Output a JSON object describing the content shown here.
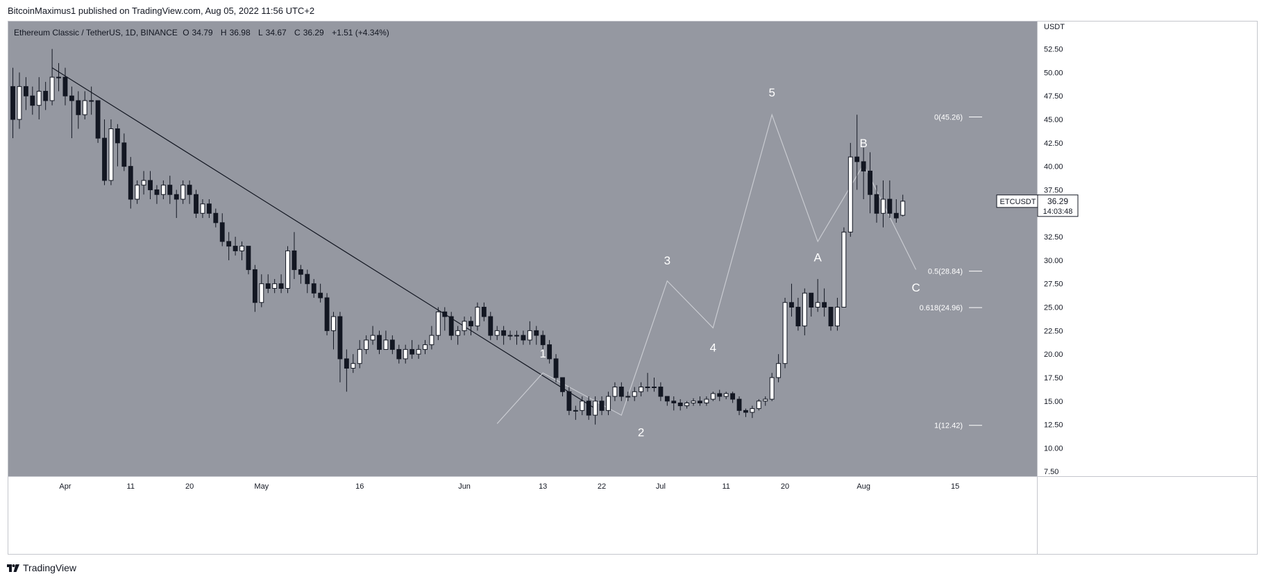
{
  "header": {
    "publisher_text": "BitcoinMaximus1 published on TradingView.com, Aug 05, 2022 11:56 UTC+2"
  },
  "legend": {
    "symbol_text": "Ethereum Classic / TetherUS, 1D, BINANCE",
    "o_label": "O",
    "o_value": "34.79",
    "h_label": "H",
    "h_value": "36.98",
    "l_label": "L",
    "l_value": "34.67",
    "c_label": "C",
    "c_value": "36.29",
    "change": "+1.51 (+4.34%)"
  },
  "price_tag": {
    "symbol": "ETCUSDT",
    "price": "36.29",
    "countdown": "14:03:48"
  },
  "footer": {
    "brand": "TradingView"
  },
  "colors": {
    "plot_bg": "#9598a1",
    "bull": "#ffffff",
    "bear": "#131722",
    "axis_bg": "#ffffff",
    "wave_line": "#c9cbd1",
    "trendline": "#131722"
  },
  "icons": {
    "logo": "tradingview-logo-icon"
  },
  "chart_data": {
    "type": "candlestick",
    "title": "Ethereum Classic / TetherUS, 1D, BINANCE",
    "currency_label": "USDT",
    "ylim": [
      7.0,
      55.5
    ],
    "y_ticks": [
      "7.50",
      "10.00",
      "12.50",
      "15.00",
      "17.50",
      "20.00",
      "22.50",
      "25.00",
      "27.50",
      "30.00",
      "32.50",
      "35.00",
      "37.50",
      "40.00",
      "42.50",
      "45.00",
      "47.50",
      "50.00",
      "52.50"
    ],
    "x_ticks": [
      {
        "label": "Apr",
        "index": 8
      },
      {
        "label": "11",
        "index": 18
      },
      {
        "label": "20",
        "index": 27
      },
      {
        "label": "May",
        "index": 38
      },
      {
        "label": "16",
        "index": 53
      },
      {
        "label": "Jun",
        "index": 69
      },
      {
        "label": "13",
        "index": 81
      },
      {
        "label": "22",
        "index": 90
      },
      {
        "label": "Jul",
        "index": 99
      },
      {
        "label": "11",
        "index": 109
      },
      {
        "label": "20",
        "index": 118
      },
      {
        "label": "Aug",
        "index": 130
      },
      {
        "label": "15",
        "index": 144
      }
    ],
    "x_range": [
      -0.8,
      156.5
    ],
    "candles": [
      [
        48.5,
        45.0,
        50.5,
        43.0
      ],
      [
        45.0,
        48.5,
        50.0,
        44.0
      ],
      [
        48.5,
        47.5,
        49.5,
        46.0
      ],
      [
        47.5,
        46.5,
        48.5,
        45.5
      ],
      [
        46.5,
        48.0,
        49.5,
        45.0
      ],
      [
        48.0,
        47.0,
        49.0,
        46.0
      ],
      [
        47.0,
        49.5,
        52.5,
        46.5
      ],
      [
        49.5,
        49.5,
        51.0,
        48.0
      ],
      [
        49.5,
        47.5,
        50.5,
        46.5
      ],
      [
        47.5,
        47.0,
        48.5,
        43.0
      ],
      [
        47.0,
        45.5,
        48.0,
        44.0
      ],
      [
        45.5,
        47.0,
        48.0,
        45.0
      ],
      [
        47.0,
        47.0,
        48.5,
        45.5
      ],
      [
        47.0,
        43.0,
        47.0,
        42.5
      ],
      [
        43.0,
        38.5,
        45.0,
        38.0
      ],
      [
        38.5,
        44.0,
        45.0,
        38.0
      ],
      [
        44.0,
        42.5,
        44.5,
        40.0
      ],
      [
        42.5,
        40.0,
        43.5,
        39.5
      ],
      [
        40.0,
        36.5,
        41.0,
        35.5
      ],
      [
        36.5,
        38.0,
        38.5,
        36.0
      ],
      [
        38.0,
        38.5,
        39.5,
        37.0
      ],
      [
        38.5,
        37.5,
        39.5,
        36.5
      ],
      [
        37.5,
        37.0,
        38.0,
        36.0
      ],
      [
        37.0,
        38.0,
        38.5,
        36.5
      ],
      [
        38.0,
        37.0,
        39.0,
        36.0
      ],
      [
        37.0,
        36.5,
        37.5,
        34.5
      ],
      [
        36.5,
        38.0,
        38.5,
        36.0
      ],
      [
        38.0,
        37.0,
        38.5,
        36.0
      ],
      [
        37.0,
        35.0,
        37.5,
        34.5
      ],
      [
        35.0,
        36.0,
        36.5,
        34.5
      ],
      [
        36.0,
        35.0,
        36.5,
        34.5
      ],
      [
        35.0,
        34.0,
        35.5,
        33.5
      ],
      [
        34.0,
        32.0,
        35.0,
        31.5
      ],
      [
        32.0,
        31.5,
        33.0,
        30.0
      ],
      [
        31.5,
        31.0,
        32.5,
        30.5
      ],
      [
        31.0,
        31.5,
        32.0,
        30.0
      ],
      [
        31.5,
        29.0,
        31.5,
        28.5
      ],
      [
        29.0,
        25.5,
        29.5,
        24.5
      ],
      [
        25.5,
        27.5,
        28.5,
        25.0
      ],
      [
        27.5,
        27.0,
        28.5,
        26.5
      ],
      [
        27.0,
        27.5,
        28.0,
        26.5
      ],
      [
        27.5,
        27.0,
        28.5,
        26.5
      ],
      [
        27.0,
        31.0,
        31.5,
        26.5
      ],
      [
        31.0,
        29.0,
        33.0,
        28.0
      ],
      [
        29.0,
        28.5,
        29.5,
        27.5
      ],
      [
        28.5,
        27.5,
        29.0,
        26.5
      ],
      [
        27.5,
        26.5,
        28.0,
        26.0
      ],
      [
        26.5,
        26.0,
        27.5,
        25.5
      ],
      [
        26.0,
        22.5,
        26.5,
        22.0
      ],
      [
        22.5,
        24.0,
        24.5,
        20.5
      ],
      [
        24.0,
        19.5,
        24.5,
        17.0
      ],
      [
        19.5,
        18.5,
        20.5,
        16.0
      ],
      [
        18.5,
        19.0,
        20.0,
        18.0
      ],
      [
        19.0,
        20.5,
        21.5,
        18.5
      ],
      [
        20.5,
        21.5,
        22.0,
        20.0
      ],
      [
        21.5,
        22.0,
        23.0,
        21.0
      ],
      [
        22.0,
        20.5,
        22.5,
        20.0
      ],
      [
        20.5,
        21.5,
        22.5,
        20.5
      ],
      [
        21.5,
        20.5,
        22.0,
        20.0
      ],
      [
        20.5,
        19.5,
        21.0,
        19.0
      ],
      [
        19.5,
        20.5,
        21.0,
        19.0
      ],
      [
        20.5,
        20.0,
        21.5,
        19.5
      ],
      [
        20.0,
        20.5,
        21.0,
        19.5
      ],
      [
        20.5,
        21.0,
        21.5,
        20.0
      ],
      [
        21.0,
        22.0,
        23.0,
        20.5
      ],
      [
        22.0,
        24.5,
        25.0,
        21.5
      ],
      [
        24.5,
        24.0,
        25.0,
        22.5
      ],
      [
        24.0,
        22.0,
        24.5,
        21.5
      ],
      [
        22.0,
        22.5,
        23.0,
        21.0
      ],
      [
        22.5,
        23.5,
        24.0,
        22.0
      ],
      [
        23.5,
        23.0,
        24.0,
        22.0
      ],
      [
        23.0,
        25.0,
        25.5,
        22.5
      ],
      [
        25.0,
        24.0,
        25.5,
        23.5
      ],
      [
        24.0,
        22.0,
        24.5,
        21.5
      ],
      [
        22.0,
        22.5,
        23.0,
        21.5
      ],
      [
        22.5,
        22.0,
        23.0,
        21.0
      ],
      [
        22.0,
        22.0,
        22.5,
        21.5
      ],
      [
        22.0,
        22.0,
        22.5,
        21.0
      ],
      [
        22.0,
        21.5,
        22.5,
        21.0
      ],
      [
        21.5,
        22.5,
        23.5,
        21.0
      ],
      [
        22.5,
        22.0,
        23.0,
        21.0
      ],
      [
        22.0,
        21.0,
        22.5,
        20.5
      ],
      [
        21.0,
        19.5,
        21.5,
        19.0
      ],
      [
        19.5,
        17.5,
        20.0,
        17.0
      ],
      [
        17.5,
        16.0,
        17.5,
        15.5
      ],
      [
        16.0,
        14.0,
        16.5,
        13.5
      ],
      [
        14.0,
        14.0,
        14.5,
        13.0
      ],
      [
        14.0,
        15.0,
        15.5,
        13.5
      ],
      [
        15.0,
        13.5,
        15.5,
        13.0
      ],
      [
        13.5,
        15.0,
        15.5,
        12.5
      ],
      [
        15.0,
        14.0,
        15.5,
        13.5
      ],
      [
        14.0,
        15.5,
        16.0,
        13.5
      ],
      [
        15.5,
        16.5,
        17.0,
        15.0
      ],
      [
        16.5,
        15.5,
        17.0,
        15.0
      ],
      [
        15.5,
        15.5,
        16.0,
        15.0
      ],
      [
        15.5,
        16.0,
        16.5,
        15.0
      ],
      [
        16.0,
        16.5,
        17.0,
        15.5
      ],
      [
        16.5,
        16.5,
        18.0,
        16.0
      ],
      [
        16.5,
        16.5,
        17.5,
        16.0
      ],
      [
        16.5,
        15.5,
        17.0,
        15.0
      ],
      [
        15.5,
        15.0,
        15.5,
        14.5
      ],
      [
        15.0,
        14.8,
        15.5,
        14.0
      ],
      [
        14.8,
        14.5,
        15.2,
        14.0
      ],
      [
        14.5,
        14.8,
        15.0,
        14.2
      ],
      [
        14.8,
        15.0,
        15.3,
        14.5
      ],
      [
        15.0,
        14.8,
        15.5,
        14.5
      ],
      [
        14.8,
        15.2,
        15.5,
        14.5
      ],
      [
        15.2,
        15.8,
        16.0,
        15.0
      ],
      [
        15.8,
        15.5,
        16.2,
        15.0
      ],
      [
        15.5,
        15.8,
        16.0,
        15.2
      ],
      [
        15.8,
        15.2,
        16.0,
        14.8
      ],
      [
        15.2,
        14.0,
        15.5,
        13.5
      ],
      [
        14.0,
        13.8,
        14.2,
        13.3
      ],
      [
        13.8,
        14.2,
        14.5,
        13.2
      ],
      [
        14.2,
        15.0,
        15.2,
        14.0
      ],
      [
        15.0,
        15.2,
        15.5,
        14.5
      ],
      [
        15.2,
        17.5,
        18.0,
        15.0
      ],
      [
        17.5,
        19.0,
        20.0,
        17.0
      ],
      [
        19.0,
        25.5,
        26.0,
        18.5
      ],
      [
        25.5,
        25.0,
        27.5,
        24.0
      ],
      [
        25.0,
        23.0,
        26.0,
        22.5
      ],
      [
        23.0,
        26.5,
        27.0,
        22.0
      ],
      [
        26.5,
        25.0,
        26.5,
        24.0
      ],
      [
        25.0,
        25.5,
        28.0,
        24.5
      ],
      [
        25.5,
        25.0,
        27.0,
        24.0
      ],
      [
        25.0,
        23.0,
        25.0,
        22.5
      ],
      [
        23.0,
        25.0,
        26.0,
        22.5
      ],
      [
        25.0,
        33.0,
        33.5,
        25.0
      ],
      [
        33.0,
        41.0,
        42.5,
        32.5
      ],
      [
        41.0,
        40.5,
        45.5,
        37.5
      ],
      [
        40.5,
        39.5,
        42.0,
        36.5
      ],
      [
        39.5,
        37.0,
        41.5,
        35.0
      ],
      [
        37.0,
        35.0,
        38.0,
        34.0
      ],
      [
        35.0,
        36.5,
        38.5,
        33.5
      ],
      [
        36.5,
        35.0,
        38.5,
        34.5
      ],
      [
        35.0,
        34.5,
        36.5,
        34.0
      ],
      [
        34.79,
        36.29,
        36.98,
        34.67
      ]
    ],
    "trendline": {
      "from": {
        "index": 6,
        "price": 50.5
      },
      "to": {
        "index": 89,
        "price": 14.2
      }
    },
    "wave_path": [
      {
        "index": 74,
        "price": 12.6
      },
      {
        "index": 81,
        "price": 18.0
      },
      {
        "index": 93,
        "price": 13.5
      },
      {
        "index": 100,
        "price": 27.8
      },
      {
        "index": 107,
        "price": 22.8
      },
      {
        "index": 116,
        "price": 45.5
      },
      {
        "index": 123,
        "price": 32.0
      },
      {
        "index": 130,
        "price": 40.2
      },
      {
        "index": 138,
        "price": 29.0
      }
    ],
    "wave_labels": [
      {
        "text": "1",
        "index": 81,
        "price": 19.2,
        "pos": "above"
      },
      {
        "text": "2",
        "index": 96,
        "price": 12.6,
        "pos": "below"
      },
      {
        "text": "3",
        "index": 100,
        "price": 29.1,
        "pos": "above"
      },
      {
        "text": "4",
        "index": 107,
        "price": 21.6,
        "pos": "below"
      },
      {
        "text": "5",
        "index": 116,
        "price": 47.0,
        "pos": "above"
      },
      {
        "text": "A",
        "index": 123,
        "price": 31.2,
        "pos": "below"
      },
      {
        "text": "B",
        "index": 130,
        "price": 41.6,
        "pos": "above"
      },
      {
        "text": "C",
        "index": 138,
        "price": 28.0,
        "pos": "below"
      }
    ],
    "fib_levels": [
      {
        "label": "0(45.26)",
        "price": 45.26
      },
      {
        "label": "0.5(28.84)",
        "price": 28.84
      },
      {
        "label": "0.618(24.96)",
        "price": 24.96
      },
      {
        "label": "1(12.42)",
        "price": 12.42
      }
    ]
  }
}
